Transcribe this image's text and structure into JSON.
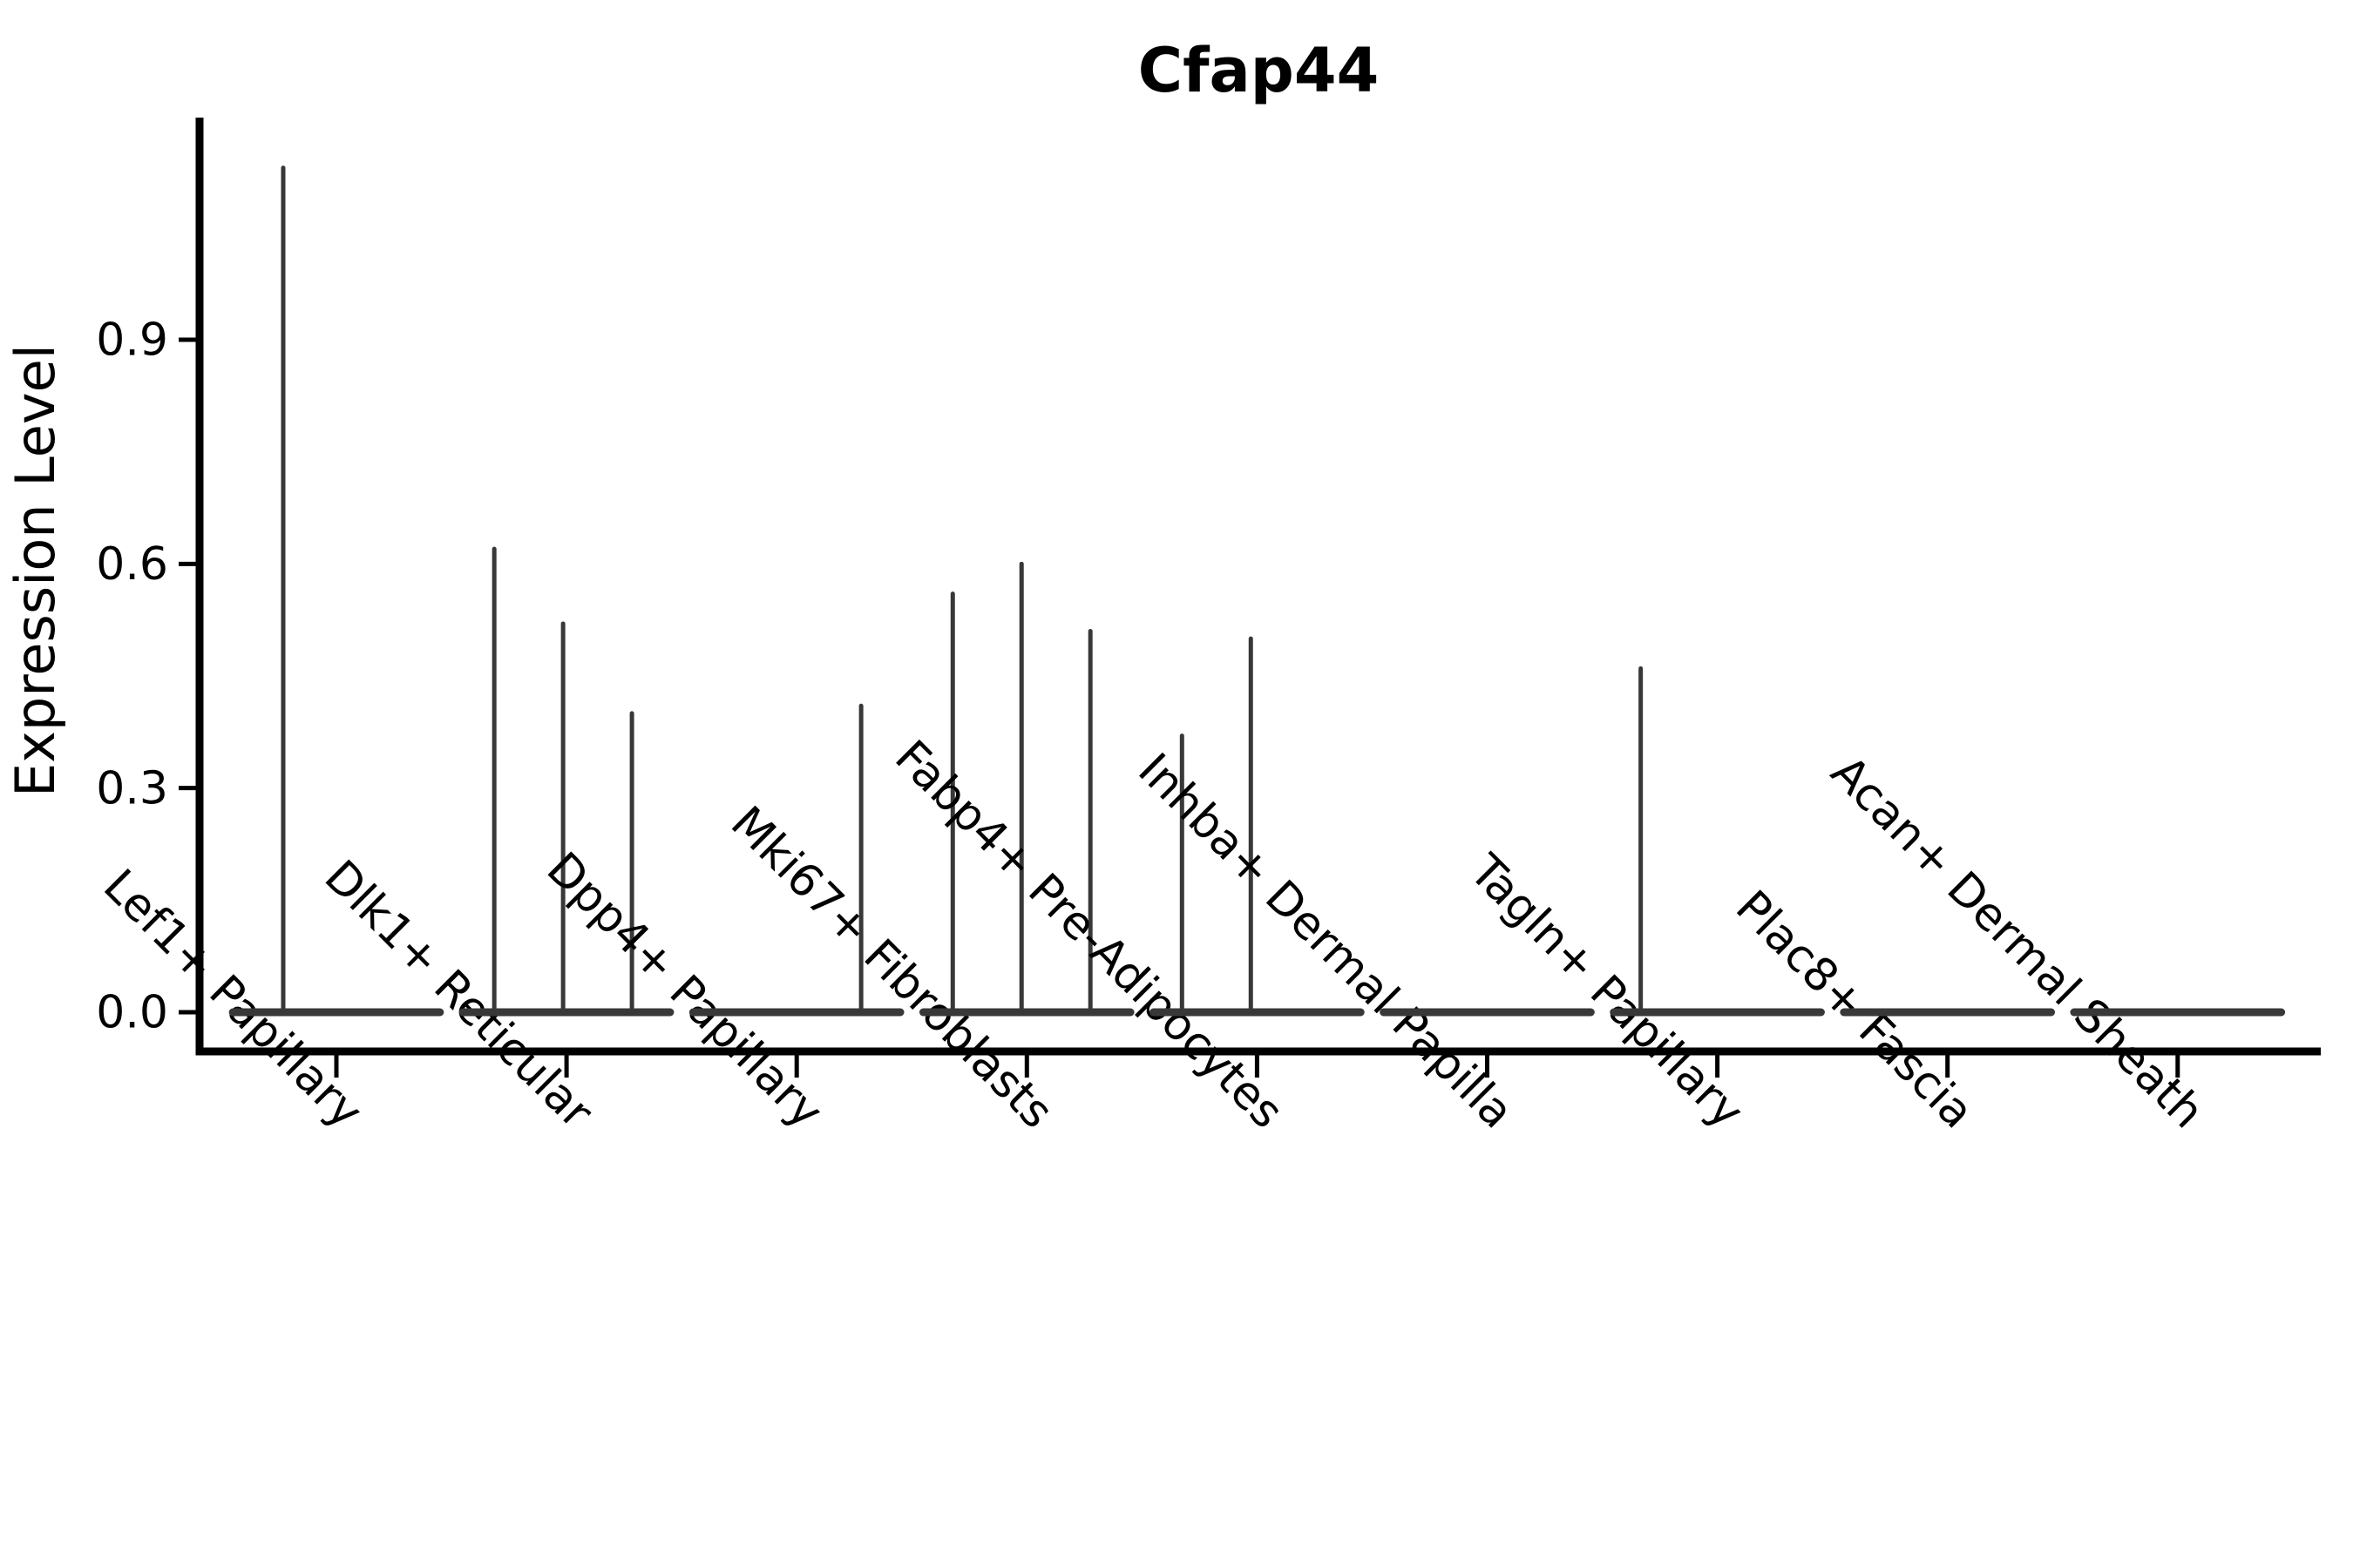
{
  "page": {
    "background": "#ffffff"
  },
  "chart_data": {
    "type": "violin",
    "title": "Cfap44",
    "ylabel": "Expression Level",
    "xlabel": "",
    "legend_position": "none",
    "grid": false,
    "background": "#ffffff",
    "axis_color": "#000000",
    "violin_color": "#383838",
    "text_color": "#000000",
    "ylim": [
      -0.06,
      1.2
    ],
    "ytick_values": [
      0.0,
      0.3,
      0.6,
      0.9
    ],
    "ytick_labels": [
      "0.0",
      "0.3",
      "0.6",
      "0.9"
    ],
    "categories": [
      "Lef1+ Papillary",
      "Dlk1+ Reticular",
      "Dpp4+ Papillary",
      "Mki67+ Fibroblasts",
      "Fabp4+ Pre-Adipocytes",
      "Inhba+ Dermal Papilla",
      "Tagln+ Papillary",
      "Plac8+ Fascia",
      "Acan+ Dermal Sheath"
    ],
    "violins": [
      {
        "label": "Lef1+ Papillary",
        "base_halfwidth_frac": 0.45,
        "zero_density_base": true,
        "spikes": [
          {
            "dx_frac": -0.231,
            "max": 1.13
          }
        ]
      },
      {
        "label": "Dlk1+ Reticular",
        "base_halfwidth_frac": 0.45,
        "zero_density_base": true,
        "spikes": [
          {
            "dx_frac": -0.314,
            "max": 0.62
          },
          {
            "dx_frac": -0.015,
            "max": 0.52
          },
          {
            "dx_frac": 0.284,
            "max": 0.4
          }
        ]
      },
      {
        "label": "Dpp4+ Papillary",
        "base_halfwidth_frac": 0.45,
        "zero_density_base": true,
        "spikes": [
          {
            "dx_frac": 0.28,
            "max": 0.41
          }
        ]
      },
      {
        "label": "Mki67+ Fibroblasts",
        "base_halfwidth_frac": 0.45,
        "zero_density_base": true,
        "spikes": [
          {
            "dx_frac": -0.322,
            "max": 0.56
          },
          {
            "dx_frac": -0.023,
            "max": 0.6
          },
          {
            "dx_frac": 0.276,
            "max": 0.51
          }
        ]
      },
      {
        "label": "Fabp4+ Pre-Adipocytes",
        "base_halfwidth_frac": 0.45,
        "zero_density_base": true,
        "spikes": [
          {
            "dx_frac": -0.326,
            "max": 0.37
          },
          {
            "dx_frac": -0.027,
            "max": 0.5
          }
        ]
      },
      {
        "label": "Inhba+ Dermal Papilla",
        "base_halfwidth_frac": 0.45,
        "zero_density_base": true,
        "spikes": []
      },
      {
        "label": "Tagln+ Papillary",
        "base_halfwidth_frac": 0.45,
        "zero_density_base": true,
        "spikes": [
          {
            "dx_frac": -0.333,
            "max": 0.46
          }
        ]
      },
      {
        "label": "Plac8+ Fascia",
        "base_halfwidth_frac": 0.45,
        "zero_density_base": true,
        "spikes": []
      },
      {
        "label": "Acan+ Dermal Sheath",
        "base_halfwidth_frac": 0.45,
        "zero_density_base": true,
        "spikes": []
      }
    ]
  }
}
